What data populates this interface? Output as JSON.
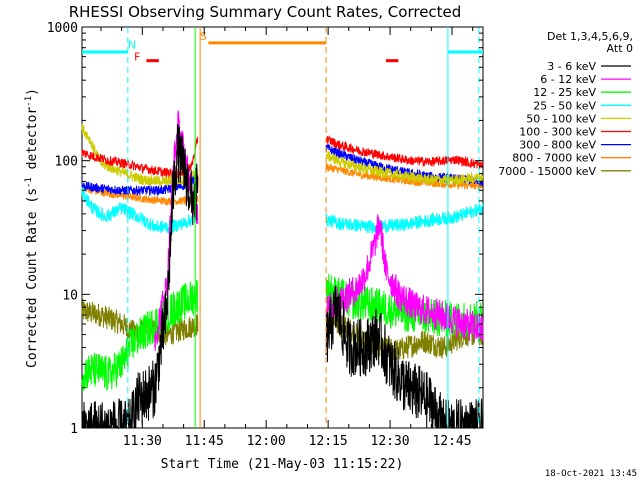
{
  "chart_data": {
    "type": "line",
    "title": "RHESSI Observing Summary Count Rates, Corrected",
    "xlabel": "Start Time (21-May-03 11:15:22)",
    "ylabel_main": "Corrected Count Rate (s",
    "ylabel_exp1": "-1",
    "ylabel_mid": " detector",
    "ylabel_exp2": "-1",
    "ylabel_end": ")",
    "y_scale": "log",
    "ylim": [
      1,
      1000
    ],
    "y_ticks": [
      {
        "v": 1,
        "label": "1"
      },
      {
        "v": 10,
        "label": "10"
      },
      {
        "v": 100,
        "label": "100"
      },
      {
        "v": 1000,
        "label": "1000"
      }
    ],
    "xlim_min": [
      15.4,
      112.5
    ],
    "x_ticks": [
      {
        "m": 30,
        "label": "11:30"
      },
      {
        "m": 45,
        "label": "11:45"
      },
      {
        "m": 60,
        "label": "12:00"
      },
      {
        "m": 75,
        "label": "12:15"
      },
      {
        "m": 90,
        "label": "12:30"
      },
      {
        "m": 105,
        "label": "12:45"
      }
    ],
    "legend_header": [
      "Det 1,3,4,5,6,9,",
      "Att 0"
    ],
    "legend_position": "right",
    "series": [
      {
        "name": "3 - 6 keV",
        "color": "#000000",
        "key": "s1"
      },
      {
        "name": "6 - 12 keV",
        "color": "#ff00ff",
        "key": "s2"
      },
      {
        "name": "12 - 25 keV",
        "color": "#00ff00",
        "key": "s3"
      },
      {
        "name": "25 - 50 keV",
        "color": "#00ffff",
        "key": "s4"
      },
      {
        "name": "50 - 100 keV",
        "color": "#cccc00",
        "key": "s5"
      },
      {
        "name": "100 - 300 keV",
        "color": "#ff0000",
        "key": "s6"
      },
      {
        "name": "300 - 800 keV",
        "color": "#0000ff",
        "key": "s7"
      },
      {
        "name": "800 - 7000 keV",
        "color": "#ff8800",
        "key": "s8"
      },
      {
        "name": "7000 - 15000 keV",
        "color": "#808000",
        "key": "s9"
      }
    ],
    "segments": [
      [
        15.4,
        43.5
      ],
      [
        74.5,
        112.5
      ]
    ],
    "profiles": {
      "s1": {
        "a": [
          [
            15.4,
            1.0
          ],
          [
            27,
            1.0
          ],
          [
            29,
            1.6
          ],
          [
            33,
            2.0
          ],
          [
            36,
            8
          ],
          [
            37.5,
            60
          ],
          [
            38.5,
            120
          ],
          [
            40,
            90
          ],
          [
            42,
            50
          ],
          [
            43.5,
            60
          ]
        ],
        "b": [
          [
            74.5,
            4.5
          ],
          [
            77,
            8
          ],
          [
            80,
            4
          ],
          [
            84,
            4
          ],
          [
            87,
            5
          ],
          [
            90,
            3
          ],
          [
            94,
            2
          ],
          [
            97,
            1.8
          ],
          [
            100,
            1.5
          ],
          [
            103,
            1.0
          ],
          [
            112.5,
            1.0
          ]
        ],
        "jit": 0.22
      },
      "s2": {
        "a": [
          [
            33,
            4.5
          ],
          [
            36,
            12
          ],
          [
            37.5,
            90
          ],
          [
            38.7,
            185
          ],
          [
            40,
            120
          ],
          [
            42,
            55
          ],
          [
            43.5,
            40
          ]
        ],
        "b": [
          [
            74.5,
            7.5
          ],
          [
            78,
            9
          ],
          [
            82,
            11
          ],
          [
            84,
            14
          ],
          [
            86,
            22
          ],
          [
            87.5,
            35
          ],
          [
            89,
            15
          ],
          [
            92,
            10
          ],
          [
            96,
            8
          ],
          [
            102,
            7
          ],
          [
            108,
            6
          ],
          [
            112.5,
            5.5
          ]
        ],
        "jit": 0.12
      },
      "s3": {
        "a": [
          [
            15.4,
            2.6
          ],
          [
            19,
            2.7
          ],
          [
            22,
            2.5
          ],
          [
            25,
            3.0
          ],
          [
            28,
            4.5
          ],
          [
            33,
            6
          ],
          [
            38,
            8
          ],
          [
            43.5,
            10
          ]
        ],
        "b": [
          [
            74.5,
            11
          ],
          [
            80,
            9
          ],
          [
            88,
            8
          ],
          [
            95,
            7
          ],
          [
            104,
            6.5
          ],
          [
            112.5,
            6.5
          ]
        ],
        "jit": 0.14
      },
      "s4": {
        "a": [
          [
            15.4,
            58
          ],
          [
            18,
            44
          ],
          [
            21,
            38
          ],
          [
            25,
            44
          ],
          [
            29,
            38
          ],
          [
            33,
            32
          ],
          [
            37,
            32
          ],
          [
            40,
            34
          ],
          [
            43.5,
            38
          ]
        ],
        "b": [
          [
            74.5,
            36
          ],
          [
            78,
            34
          ],
          [
            85,
            32
          ],
          [
            93,
            33
          ],
          [
            100,
            36
          ],
          [
            106,
            38
          ],
          [
            112.5,
            44
          ]
        ],
        "jit": 0.05
      },
      "s5": {
        "a": [
          [
            15.4,
            175
          ],
          [
            17,
            150
          ],
          [
            20,
            95
          ],
          [
            25,
            82
          ],
          [
            30,
            72
          ],
          [
            35,
            70
          ],
          [
            40,
            72
          ],
          [
            43.5,
            80
          ]
        ],
        "b": [
          [
            74.5,
            110
          ],
          [
            78,
            98
          ],
          [
            85,
            85
          ],
          [
            93,
            77
          ],
          [
            100,
            72
          ],
          [
            106,
            72
          ],
          [
            112.5,
            75
          ]
        ],
        "jit": 0.04
      },
      "s6": {
        "a": [
          [
            15.4,
            115
          ],
          [
            18,
            108
          ],
          [
            22,
            100
          ],
          [
            26,
            95
          ],
          [
            30,
            88
          ],
          [
            35,
            82
          ],
          [
            39,
            80
          ],
          [
            42,
            92
          ],
          [
            43.5,
            150
          ]
        ],
        "b": [
          [
            74.5,
            145
          ],
          [
            78,
            130
          ],
          [
            83,
            118
          ],
          [
            89,
            108
          ],
          [
            95,
            100
          ],
          [
            100,
            98
          ],
          [
            106,
            102
          ],
          [
            110,
            95
          ],
          [
            112.5,
            93
          ]
        ],
        "jit": 0.035
      },
      "s7": {
        "a": [
          [
            15.4,
            65
          ],
          [
            20,
            62
          ],
          [
            25,
            60
          ],
          [
            30,
            60
          ],
          [
            35,
            60
          ],
          [
            40,
            65
          ],
          [
            43.5,
            75
          ]
        ],
        "b": [
          [
            74.5,
            125
          ],
          [
            78,
            112
          ],
          [
            83,
            98
          ],
          [
            89,
            88
          ],
          [
            95,
            80
          ],
          [
            100,
            76
          ],
          [
            106,
            73
          ],
          [
            112.5,
            70
          ]
        ],
        "jit": 0.035
      },
      "s8": {
        "a": [
          [
            15.4,
            63
          ],
          [
            20,
            58
          ],
          [
            25,
            55
          ],
          [
            30,
            52
          ],
          [
            35,
            50
          ],
          [
            40,
            50
          ],
          [
            43.5,
            52
          ]
        ],
        "b": [
          [
            74.5,
            90
          ],
          [
            78,
            85
          ],
          [
            83,
            78
          ],
          [
            89,
            74
          ],
          [
            95,
            70
          ],
          [
            100,
            68
          ],
          [
            106,
            66
          ],
          [
            112.5,
            65
          ]
        ],
        "jit": 0.03
      },
      "s9": {
        "a": [
          [
            15.4,
            7.5
          ],
          [
            20,
            7
          ],
          [
            25,
            6
          ],
          [
            28,
            5.2
          ],
          [
            32,
            5.5
          ],
          [
            36,
            5.0
          ],
          [
            40,
            5.5
          ],
          [
            43.5,
            6
          ]
        ],
        "b": [
          [
            74.5,
            6.5
          ],
          [
            80,
            5.5
          ],
          [
            86,
            4.0
          ],
          [
            92,
            3.8
          ],
          [
            98,
            4.5
          ],
          [
            103,
            4.0
          ],
          [
            108,
            5.0
          ],
          [
            112.5,
            5.0
          ]
        ],
        "jit": 0.09
      }
    },
    "vlines": [
      {
        "m": 26.5,
        "color": "#00ffff",
        "dash": true
      },
      {
        "m": 44.0,
        "color": "#ff8800",
        "dash": false
      },
      {
        "m": 42.8,
        "color": "#00ff00",
        "dash": false
      },
      {
        "m": 74.5,
        "color": "#ff8800",
        "dash": true
      },
      {
        "m": 104.0,
        "color": "#00ffff",
        "dash": false
      },
      {
        "m": 111.5,
        "color": "#00ffff",
        "dash": true
      }
    ],
    "flags": [
      {
        "label": "N",
        "color": "#00ffff",
        "m1": 15.4,
        "m2": 26.5,
        "y": 650
      },
      {
        "label": "N",
        "color": "#00ffff",
        "m1": 104,
        "m2": 112.5,
        "y": 650
      },
      {
        "label": "F",
        "color": "#ff0000",
        "m1": 31,
        "m2": 34,
        "y": 560
      },
      {
        "label": "F",
        "color": "#ff0000",
        "m1": 89,
        "m2": 92,
        "y": 560
      },
      {
        "label": "S",
        "color": "#ff8800",
        "m1": 46,
        "m2": 74.5,
        "y": 760
      }
    ],
    "flag_letters": [
      {
        "label": "N",
        "color": "#00ffff",
        "m": 27.5,
        "y": 690
      },
      {
        "label": "F",
        "color": "#ff0000",
        "m": 28.8,
        "y": 560
      },
      {
        "label": "S",
        "color": "#ff8800",
        "m": 44.8,
        "y": 800
      }
    ],
    "timestamp": "18-Oct-2021 13:45"
  }
}
